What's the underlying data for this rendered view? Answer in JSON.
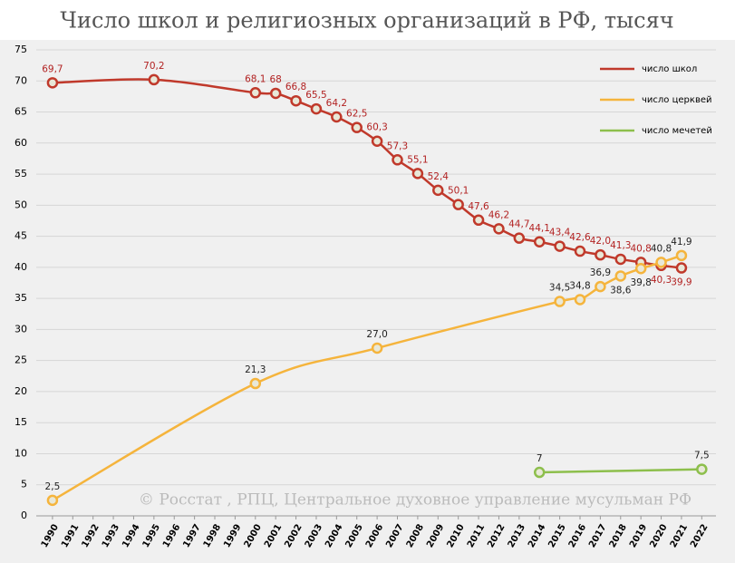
{
  "chart_data": {
    "type": "line",
    "title": "Число школ и религиозных организаций в РФ, тысяч",
    "source": "© Росстат , РПЦ, Центральное духовное управление мусульман РФ",
    "xlim": [
      1989.2,
      2022.7
    ],
    "xticks": [
      1990,
      1991,
      1992,
      1993,
      1994,
      1995,
      1996,
      1997,
      1998,
      1999,
      2000,
      2001,
      2002,
      2003,
      2004,
      2005,
      2006,
      2007,
      2008,
      2009,
      2010,
      2011,
      2012,
      2013,
      2014,
      2015,
      2016,
      2017,
      2018,
      2019,
      2020,
      2021,
      2022
    ],
    "ylim": [
      0,
      75
    ],
    "yticks": [
      0,
      5,
      10,
      15,
      20,
      25,
      30,
      35,
      40,
      45,
      50,
      55,
      60,
      65,
      70,
      75
    ],
    "grid": true,
    "legend": "top-right",
    "series": [
      {
        "name": "число школ",
        "color": "#c0392b",
        "label_color": "#b22222",
        "x": [
          1990,
          1995,
          2000,
          2001,
          2002,
          2003,
          2004,
          2005,
          2006,
          2007,
          2008,
          2009,
          2010,
          2011,
          2012,
          2013,
          2014,
          2015,
          2016,
          2017,
          2018,
          2019,
          2020,
          2021
        ],
        "values": [
          69.7,
          70.2,
          68.1,
          68,
          66.8,
          65.5,
          64.2,
          62.5,
          60.3,
          57.3,
          55.1,
          52.4,
          50.1,
          47.6,
          46.2,
          44.7,
          44.1,
          43.4,
          42.6,
          42.0,
          41.3,
          40.8,
          40.3,
          39.9
        ],
        "value_labels": [
          "69,7",
          "70,2",
          "68,1",
          "68",
          "66,8",
          "65,5",
          "64,2",
          "62,5",
          "60,3",
          "57,3",
          "55,1",
          "52,4",
          "50,1",
          "47,6",
          "46,2",
          "44,7",
          "44,1",
          "43,4",
          "42,6",
          "42,0",
          "41,3",
          "40,8",
          "40,3",
          "39,9"
        ]
      },
      {
        "name": "число церквей",
        "color": "#f5b43c",
        "label_color": "#222222",
        "x": [
          1990,
          2000,
          2006,
          2015,
          2016,
          2017,
          2018,
          2019,
          2020,
          2021
        ],
        "values": [
          2.5,
          21.3,
          27.0,
          34.5,
          34.8,
          36.9,
          38.6,
          39.8,
          40.8,
          41.9
        ],
        "value_labels": [
          "2,5",
          "21,3",
          "27,0",
          "34,5",
          "34,8",
          "36,9",
          "38,6",
          "39,8",
          "40,8",
          "41,9"
        ]
      },
      {
        "name": "число мечетей",
        "color": "#8dbf4c",
        "label_color": "#222222",
        "x": [
          2014,
          2022
        ],
        "values": [
          7,
          7.5
        ],
        "value_labels": [
          "7",
          "7,5"
        ]
      }
    ]
  }
}
